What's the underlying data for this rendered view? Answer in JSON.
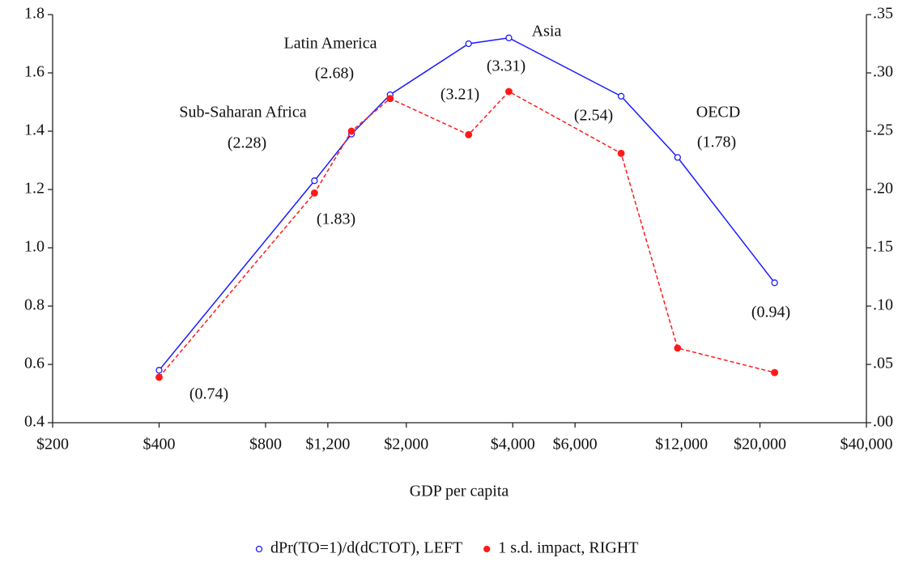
{
  "chart_data": {
    "type": "line",
    "x_label": "GDP per capita",
    "xscale": "log",
    "x": [
      400,
      1100,
      1400,
      1800,
      3000,
      3900,
      8100,
      11700,
      22000
    ],
    "series": [
      {
        "name": "dPr(TO=1)/d(dCTOT), LEFT",
        "color": "#1a1aff",
        "marker": "open-circle",
        "dashed": false,
        "axis": "y",
        "values": [
          0.58,
          1.23,
          1.39,
          1.525,
          1.7,
          1.72,
          1.52,
          1.31,
          0.88
        ]
      },
      {
        "name": "1 s.d. impact, RIGHT",
        "color": "#ff1a1a",
        "marker": "dot",
        "dashed": true,
        "axis": "y2",
        "values": [
          0.039,
          0.197,
          0.25,
          0.278,
          0.247,
          0.284,
          0.231,
          0.064,
          0.043
        ]
      }
    ],
    "xlim": [
      200,
      40000
    ],
    "xticks": [
      {
        "value": 200,
        "label": "$200"
      },
      {
        "value": 400,
        "label": "$400"
      },
      {
        "value": 800,
        "label": "$800"
      },
      {
        "value": 1200,
        "label": "$1,200"
      },
      {
        "value": 2000,
        "label": "$2,000"
      },
      {
        "value": 4000,
        "label": "$4,000"
      },
      {
        "value": 6000,
        "label": "$6,000"
      },
      {
        "value": 12000,
        "label": "$12,000"
      },
      {
        "value": 20000,
        "label": "$20,000"
      },
      {
        "value": 40000,
        "label": "$40,000"
      }
    ],
    "ylim": [
      0.4,
      1.8
    ],
    "yticks": [
      0.4,
      0.6,
      0.8,
      {
        "value": 1,
        "label": "1.0"
      },
      1.2,
      1.4,
      1.6,
      1.8
    ],
    "y2lim": [
      0,
      0.35
    ],
    "y2ticks": [
      {
        "value": 0,
        "label": ".00"
      },
      {
        "value": 0.05,
        "label": ".05"
      },
      {
        "value": 0.1,
        "label": ".10"
      },
      {
        "value": 0.15,
        "label": ".15"
      },
      {
        "value": 0.2,
        "label": ".20"
      },
      {
        "value": 0.25,
        "label": ".25"
      },
      {
        "value": 0.3,
        "label": ".30"
      },
      {
        "value": 0.35,
        "label": ".35"
      }
    ],
    "annotations": [
      "Latin America",
      "(2.68)",
      "Sub-Saharan Africa",
      "(2.28)",
      "Asia",
      "(3.31)",
      "(3.21)",
      "(2.54)",
      "OECD",
      "(1.78)",
      "(1.83)",
      "(0.94)",
      "(0.74)"
    ],
    "legend": "bottom"
  }
}
